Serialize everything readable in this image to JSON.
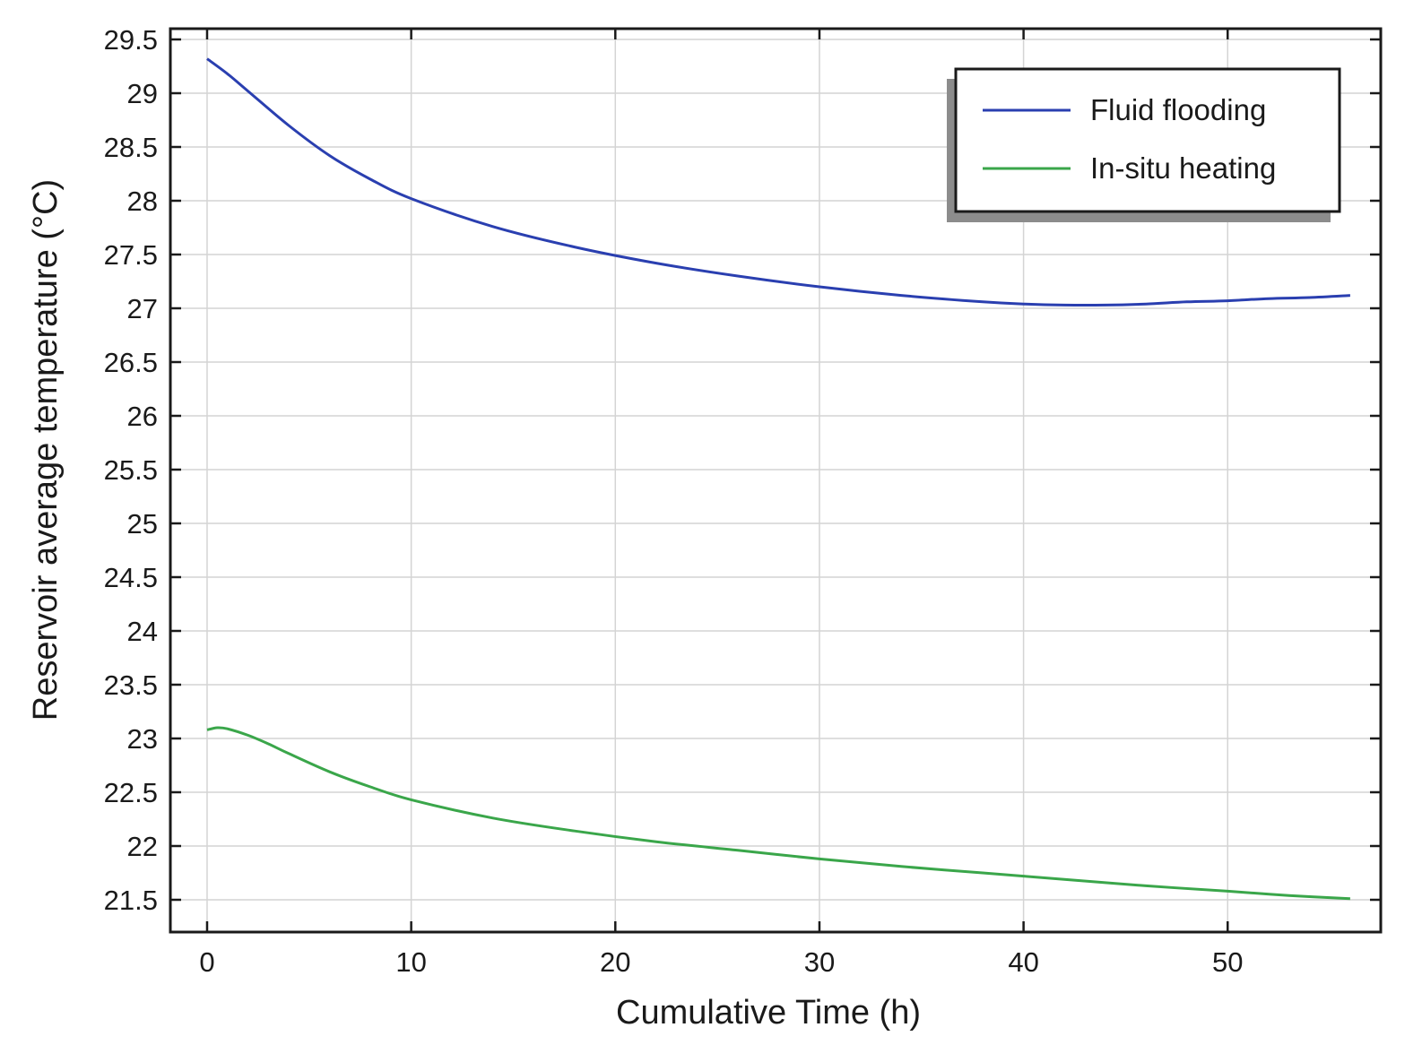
{
  "chart_data": {
    "type": "line",
    "title": "",
    "xlabel": "Cumulative Time (h)",
    "ylabel": "Reservoir average temperature (°C)",
    "xlim": [
      -1.8,
      57.5
    ],
    "ylim": [
      21.2,
      29.6
    ],
    "xticks": [
      0,
      10,
      20,
      30,
      40,
      50
    ],
    "yticks": [
      21.5,
      22,
      22.5,
      23,
      23.5,
      24,
      24.5,
      25,
      25.5,
      26,
      26.5,
      27,
      27.5,
      28,
      28.5,
      29,
      29.5
    ],
    "xtick_labels": [
      "0",
      "10",
      "20",
      "30",
      "40",
      "50"
    ],
    "ytick_labels": [
      "21.5",
      "22",
      "22.5",
      "23",
      "23.5",
      "24",
      "24.5",
      "25",
      "25.5",
      "26",
      "26.5",
      "27",
      "27.5",
      "28",
      "28.5",
      "29",
      "29.5"
    ],
    "grid": true,
    "legend_position": "top-right",
    "series": [
      {
        "name": "Fluid flooding",
        "color": "#2a3fb0",
        "x": [
          0,
          1,
          2,
          4,
          6,
          8,
          10,
          14,
          18,
          22,
          26,
          30,
          34,
          38,
          40,
          42,
          44,
          46,
          48,
          50,
          52,
          54,
          56
        ],
        "y": [
          29.32,
          29.18,
          29.02,
          28.7,
          28.42,
          28.2,
          28.02,
          27.76,
          27.57,
          27.42,
          27.3,
          27.2,
          27.12,
          27.06,
          27.04,
          27.03,
          27.03,
          27.04,
          27.06,
          27.07,
          27.09,
          27.1,
          27.12
        ]
      },
      {
        "name": "In-situ heating",
        "color": "#3aa64a",
        "x": [
          0,
          0.5,
          1,
          2,
          3,
          4,
          6,
          8,
          10,
          14,
          18,
          22,
          26,
          30,
          34,
          38,
          42,
          46,
          50,
          53,
          56
        ],
        "y": [
          23.08,
          23.1,
          23.09,
          23.03,
          22.95,
          22.86,
          22.69,
          22.55,
          22.43,
          22.26,
          22.14,
          22.04,
          21.96,
          21.88,
          21.81,
          21.75,
          21.69,
          21.63,
          21.58,
          21.54,
          21.51
        ]
      }
    ]
  }
}
